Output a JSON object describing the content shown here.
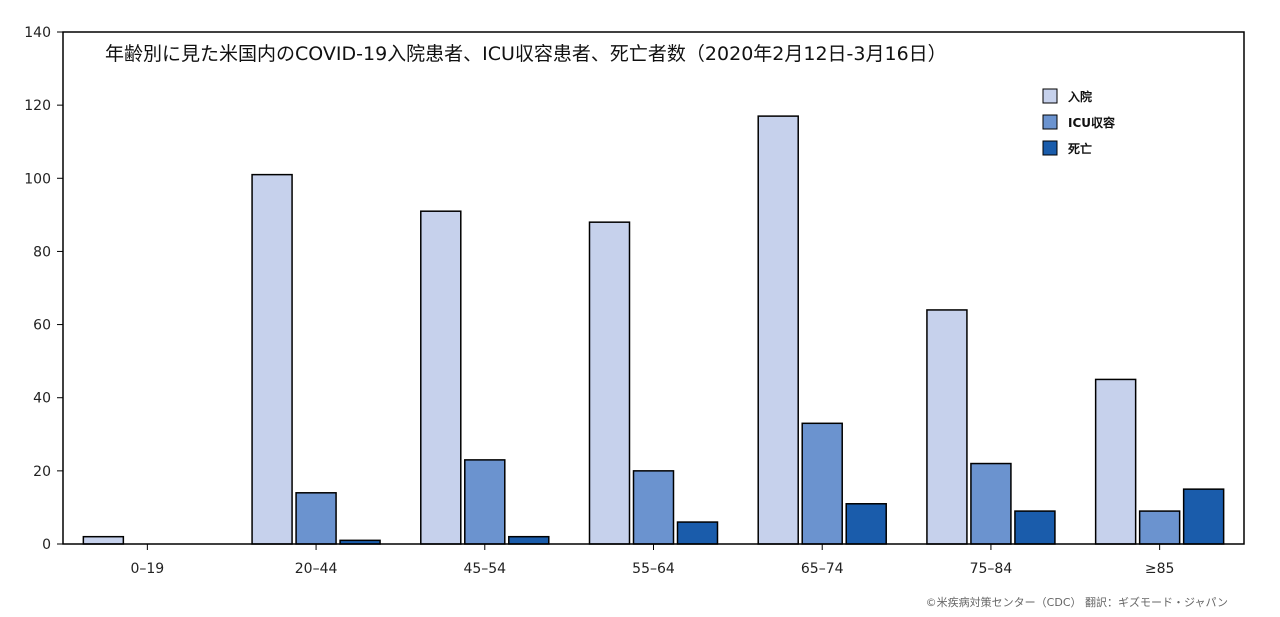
{
  "chart_data": {
    "type": "bar",
    "title": "年齢別に見た米国内のCOVID-19入院患者、ICU収容患者、死亡者数（2020年2月12日-3月16日）",
    "categories": [
      "0–19",
      "20–44",
      "45–54",
      "55–64",
      "65–74",
      "75–84",
      "≥85"
    ],
    "series": [
      {
        "name": "入院",
        "color": "#c6d1ec",
        "values": [
          2,
          101,
          91,
          88,
          117,
          64,
          45
        ]
      },
      {
        "name": "ICU収容",
        "color": "#6b93cf",
        "values": [
          0,
          14,
          23,
          20,
          33,
          22,
          9
        ]
      },
      {
        "name": "死亡",
        "color": "#1a5cab",
        "values": [
          0,
          1,
          2,
          6,
          11,
          9,
          15
        ]
      }
    ],
    "xlabel": "",
    "ylabel": "",
    "ylim": [
      0,
      140
    ],
    "yticks": [
      0,
      20,
      40,
      60,
      80,
      100,
      120,
      140
    ],
    "grid": false,
    "legend_position": "top-right"
  },
  "credit": "©米疾病対策センター（CDC） 翻訳：ギズモード・ジャパン"
}
